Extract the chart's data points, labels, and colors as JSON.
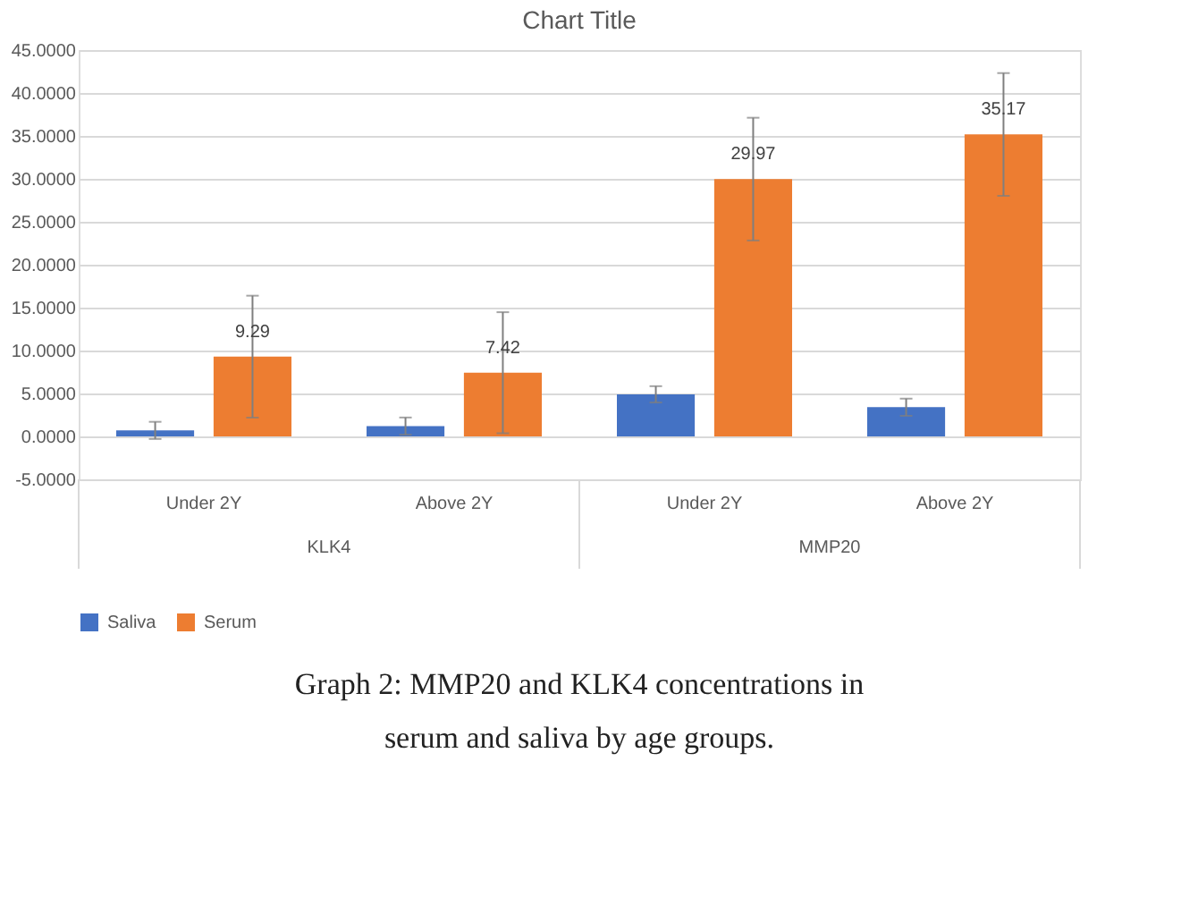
{
  "chart_data": {
    "type": "bar",
    "title": "Chart Title",
    "categories": [
      "Under 2Y",
      "Above 2Y",
      "Under 2Y",
      "Above 2Y"
    ],
    "series": [
      {
        "name": "Saliva",
        "color": "#4472c4",
        "values": [
          0.7,
          1.2,
          4.9,
          3.4
        ],
        "errors": [
          1.0,
          1.0,
          0.95,
          1.0
        ]
      },
      {
        "name": "Serum",
        "color": "#ed7d31",
        "values": [
          9.29,
          7.42,
          29.97,
          35.17
        ],
        "errors": [
          7.1,
          7.05,
          7.15,
          7.15
        ],
        "value_labels": [
          "9.29",
          "7.42",
          "29.97",
          "35.17"
        ]
      }
    ],
    "ylim": [
      -5,
      45
    ],
    "yticks": [
      {
        "value": -5,
        "label": "-5.0000"
      },
      {
        "value": 0,
        "label": "0.0000"
      },
      {
        "value": 5,
        "label": "5.0000"
      },
      {
        "value": 10,
        "label": "10.0000"
      },
      {
        "value": 15,
        "label": "15.0000"
      },
      {
        "value": 20,
        "label": "20.0000"
      },
      {
        "value": 25,
        "label": "25.0000"
      },
      {
        "value": 30,
        "label": "30.0000"
      },
      {
        "value": 35,
        "label": "35.0000"
      },
      {
        "value": 40,
        "label": "40.0000"
      },
      {
        "value": 45,
        "label": "45.0000"
      }
    ],
    "grid": "y",
    "legend": "bottom",
    "annotations": [
      "KLK4",
      "MMP20",
      "Graph 2: MMP20 and KLK4 concentrations in serum and saliva by age groups."
    ]
  }
}
